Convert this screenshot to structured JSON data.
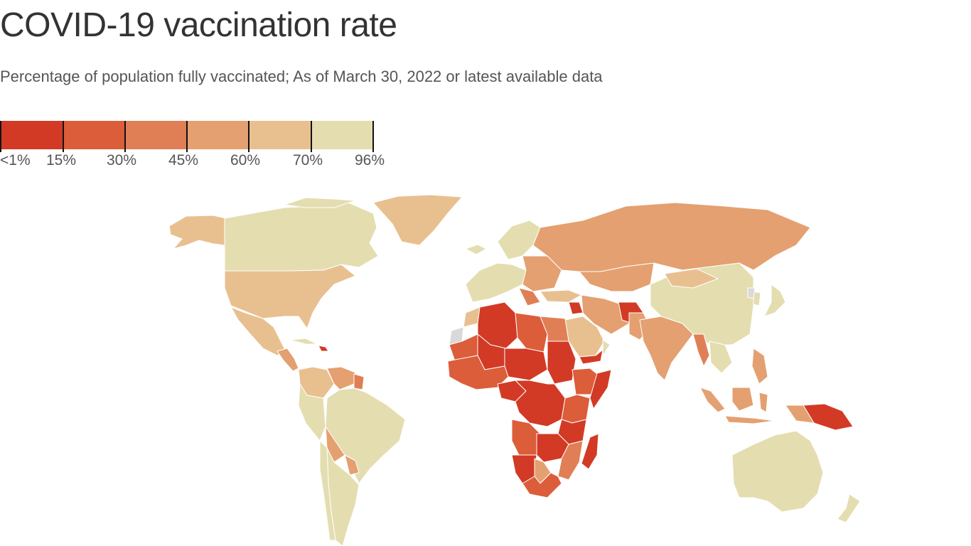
{
  "title": "COVID-19 vaccination rate",
  "subtitle": "Percentage of population fully vaccinated; As of March 30, 2022 or latest available data",
  "legend": {
    "labels": [
      "<1%",
      "15%",
      "30%",
      "45%",
      "60%",
      "70%",
      "96%"
    ],
    "colors": [
      "#d23a25",
      "#dc5d3a",
      "#e07f55",
      "#e4a070",
      "#e8c08f",
      "#e4ddb0"
    ]
  },
  "colors": {
    "no_data": "#d9d9d9",
    "border": "#ffffff"
  }
}
